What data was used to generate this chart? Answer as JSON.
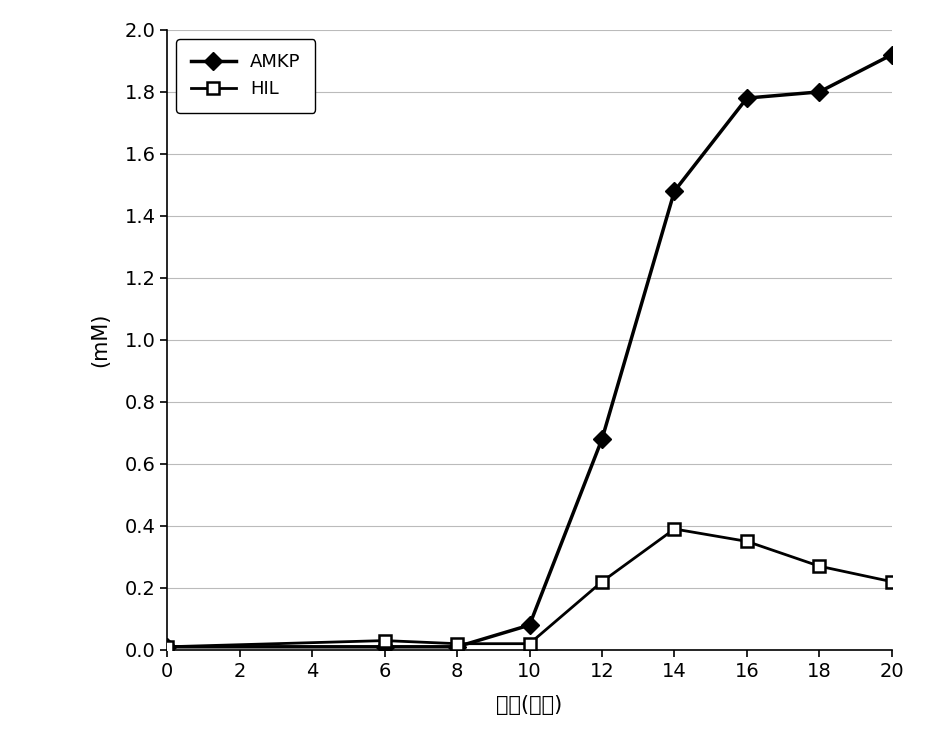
{
  "amkp_x": [
    0,
    6,
    8,
    10,
    12,
    14,
    16,
    18,
    20
  ],
  "amkp_y": [
    0.01,
    0.01,
    0.01,
    0.08,
    0.68,
    1.48,
    1.78,
    1.8,
    1.92
  ],
  "hil_x": [
    0,
    6,
    8,
    10,
    12,
    14,
    16,
    18,
    20
  ],
  "hil_y": [
    0.01,
    0.03,
    0.02,
    0.02,
    0.22,
    0.39,
    0.35,
    0.27,
    0.22
  ],
  "amkp_label": "AMKP",
  "hil_label": "HIL",
  "xlabel": "时间(小时)",
  "ylabel": "(mM)",
  "xlim": [
    0,
    20
  ],
  "ylim": [
    0.0,
    2.0
  ],
  "xticks": [
    0,
    2,
    4,
    6,
    8,
    10,
    12,
    14,
    16,
    18,
    20
  ],
  "yticks": [
    0.0,
    0.2,
    0.4,
    0.6,
    0.8,
    1.0,
    1.2,
    1.4,
    1.6,
    1.8,
    2.0
  ],
  "line_color": "#000000",
  "background_color": "#ffffff",
  "grid_color": "#bbbbbb",
  "label_fontsize": 15,
  "tick_fontsize": 14,
  "legend_fontsize": 13
}
